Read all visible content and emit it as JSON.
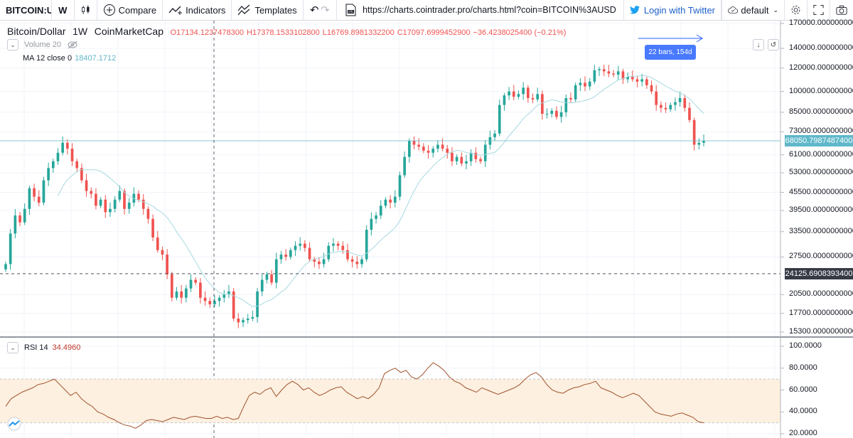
{
  "toolbar": {
    "symbol": "BITCOIN:USD",
    "interval": "W",
    "compare_label": "Compare",
    "indicators_label": "Indicators",
    "templates_label": "Templates",
    "url": "https://charts.cointrader.pro/charts.html?coin=BITCOIN%3AUSD",
    "twitter_label": "Login with Twitter",
    "layout_label": "default"
  },
  "legend": {
    "title": "Bitcoin/Dollar",
    "interval": "1W",
    "source": "CoinMarketCap",
    "open": "O17134.1237478300",
    "high": "H17378.1533102800",
    "low": "L16769.8981332200",
    "close": "C17097.6999452900",
    "change": "−36.4238025400 (−0.21%)",
    "volume": "Volume 20",
    "ma_label": "MA 12 close 0",
    "ma_value": "18407.1712",
    "rsi_label": "RSI 14",
    "rsi_value": "34.4960"
  },
  "measure_tooltip": "22 bars, 154d",
  "price_axis": [
    "170000.0000000000",
    "140000.0000000000",
    "120000.0000000000",
    "100000.0000000000",
    "85000.0000000000",
    "73000.0000000000",
    "61000.0000000000",
    "53000.0000000000",
    "45500.0000000000",
    "39500.0000000000",
    "33500.0000000000",
    "27500.0000000000",
    "20500.0000000000",
    "17700.0000000000",
    "15300.0000000000"
  ],
  "rsi_axis": [
    "100.0000",
    "80.0000",
    "60.0000",
    "40.0000",
    "20.0000"
  ],
  "last_price_label": "68050.7987487400",
  "crosshair_price_label": "24125.6908393400",
  "colors": {
    "up": "#26a69a",
    "down": "#ef5350",
    "ma": "#a7d9e0",
    "rsi_line": "#a0522d",
    "rsi_band": "#fdf0e0",
    "last_price": "#5fb8c9",
    "crosshair": "#363a45"
  },
  "chart_data": {
    "type": "candlestick",
    "ylim": [
      15300,
      170000
    ],
    "y_scale": "log",
    "close_series": [
      26000,
      33000,
      38000,
      36000,
      40000,
      47000,
      44000,
      42000,
      50000,
      55000,
      58000,
      62000,
      67000,
      64000,
      58000,
      55000,
      50000,
      46000,
      45000,
      41000,
      43000,
      39000,
      40000,
      43000,
      46000,
      40000,
      42000,
      45000,
      43000,
      40000,
      37000,
      32000,
      29000,
      28000,
      24000,
      20000,
      21000,
      20000,
      21500,
      23000,
      22500,
      20000,
      19500,
      19000,
      19500,
      20000,
      20500,
      21000,
      17000,
      16500,
      16800,
      17000,
      17200,
      21000,
      23000,
      24000,
      22500,
      27000,
      28000,
      27500,
      29000,
      30000,
      30500,
      29500,
      27000,
      26500,
      26000,
      27000,
      30000,
      30500,
      30000,
      29000,
      27000,
      26500,
      26000,
      27000,
      34000,
      37000,
      38000,
      41000,
      43000,
      42000,
      44000,
      52000,
      60000,
      68000,
      66000,
      65000,
      63000,
      62000,
      64000,
      66000,
      64000,
      62000,
      58000,
      60000,
      57000,
      58000,
      62000,
      59000,
      58000,
      66000,
      70000,
      72000,
      90000,
      97000,
      100000,
      96000,
      98000,
      103000,
      95000,
      94000,
      98000,
      84000,
      84000,
      86000,
      82000,
      85000,
      95000,
      94000,
      105000,
      107000,
      104000,
      108000,
      118000,
      119000,
      117000,
      115000,
      114000,
      117000,
      110000,
      112000,
      110000,
      108000,
      110000,
      105000,
      100000,
      90000,
      88000,
      87000,
      90000,
      92000,
      95000,
      88000,
      80000,
      66000,
      67000,
      68000
    ],
    "ma_label": "MA 12 close 0",
    "rsi": {
      "ylim": [
        20,
        100
      ],
      "bands": [
        30,
        70
      ],
      "values": [
        45,
        52,
        55,
        58,
        60,
        62,
        65,
        66,
        68,
        70,
        65,
        60,
        55,
        58,
        52,
        48,
        45,
        40,
        38,
        35,
        33,
        30,
        28,
        27,
        25,
        28,
        32,
        33,
        32,
        31,
        33,
        35,
        34,
        33,
        35,
        36,
        35,
        34,
        34,
        36,
        34,
        35,
        33,
        34,
        45,
        55,
        58,
        56,
        60,
        62,
        54,
        60,
        65,
        68,
        65,
        60,
        62,
        58,
        55,
        57,
        60,
        62,
        63,
        58,
        55,
        52,
        54,
        52,
        56,
        62,
        75,
        78,
        80,
        76,
        78,
        72,
        70,
        74,
        80,
        85,
        82,
        78,
        72,
        68,
        66,
        62,
        60,
        58,
        62,
        60,
        58,
        56,
        58,
        60,
        62,
        65,
        70,
        74,
        76,
        72,
        65,
        60,
        58,
        57,
        60,
        62,
        63,
        65,
        66,
        68,
        62,
        60,
        58,
        55,
        53,
        55,
        57,
        55,
        50,
        45,
        40,
        38,
        37,
        36,
        38,
        39,
        37,
        35,
        31,
        30
      ]
    }
  }
}
